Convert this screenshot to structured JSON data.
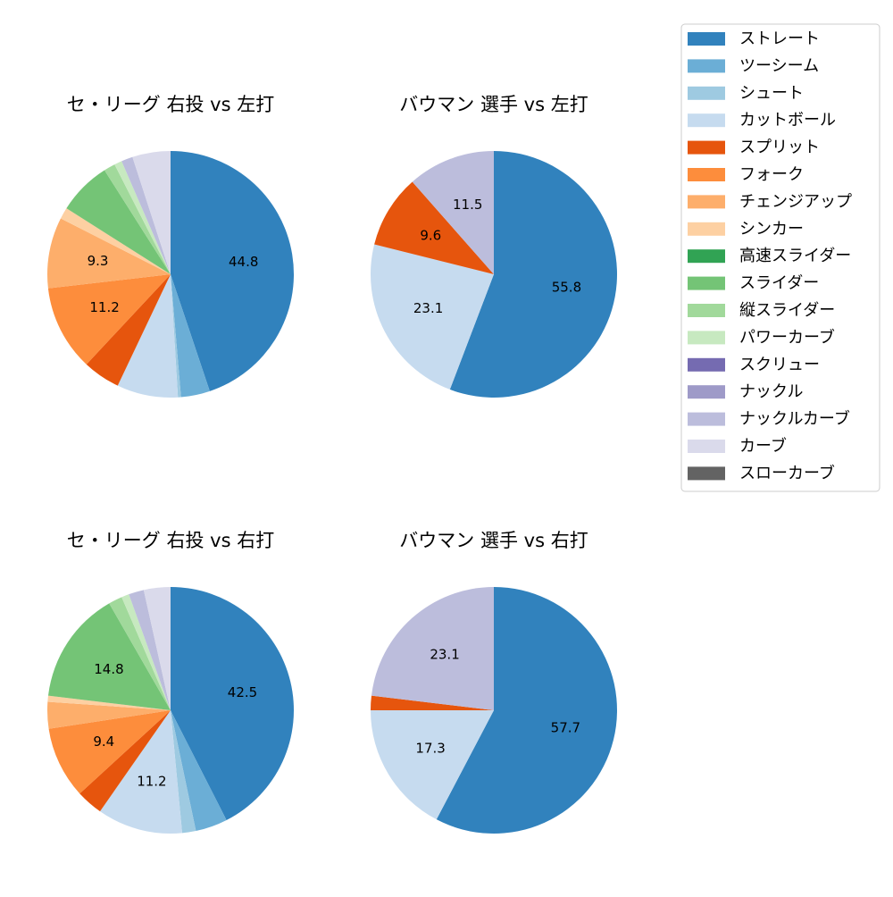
{
  "chart_data": [
    {
      "type": "pie",
      "title": "セ・リーグ 右投 vs 左打",
      "categories": [
        "ストレート",
        "ツーシーム",
        "シュート",
        "カットボール",
        "スプリット",
        "フォーク",
        "チェンジアップ",
        "シンカー",
        "高速スライダー",
        "スライダー",
        "縦スライダー",
        "パワーカーブ",
        "スクリュー",
        "ナックル",
        "ナックルカーブ",
        "カーブ",
        "スローカーブ"
      ],
      "colors": [
        "#3182bd",
        "#6baed6",
        "#9ecae1",
        "#c6dbef",
        "#e6550d",
        "#fd8d3c",
        "#fdae6b",
        "#fdd0a2",
        "#31a354",
        "#74c476",
        "#a1d99b",
        "#c7e9c0",
        "#756bb1",
        "#9e9ac8",
        "#bcbddc",
        "#dadaeb",
        "#636363"
      ],
      "values": [
        44.8,
        3.8,
        0.4,
        8.0,
        4.9,
        11.2,
        9.3,
        1.5,
        0,
        7.0,
        1.5,
        1.0,
        0,
        0,
        1.5,
        5.0,
        0
      ],
      "value_labels": [
        "44.8",
        null,
        null,
        null,
        null,
        "11.2",
        "9.3",
        null,
        null,
        null,
        null,
        null,
        null,
        null,
        null,
        null,
        null
      ],
      "legend": "upper right"
    },
    {
      "type": "pie",
      "title": "バウマン 選手 vs 左打",
      "categories": [
        "ストレート",
        "ツーシーム",
        "シュート",
        "カットボール",
        "スプリット",
        "フォーク",
        "チェンジアップ",
        "シンカー",
        "高速スライダー",
        "スライダー",
        "縦スライダー",
        "パワーカーブ",
        "スクリュー",
        "ナックル",
        "ナックルカーブ",
        "カーブ",
        "スローカーブ"
      ],
      "colors": [
        "#3182bd",
        "#6baed6",
        "#9ecae1",
        "#c6dbef",
        "#e6550d",
        "#fd8d3c",
        "#fdae6b",
        "#fdd0a2",
        "#31a354",
        "#74c476",
        "#a1d99b",
        "#c7e9c0",
        "#756bb1",
        "#9e9ac8",
        "#bcbddc",
        "#dadaeb",
        "#636363"
      ],
      "values": [
        55.8,
        0,
        0,
        23.1,
        9.6,
        0,
        0,
        0,
        0,
        0,
        0,
        0,
        0,
        0,
        11.5,
        0,
        0
      ],
      "value_labels": [
        "55.8",
        null,
        null,
        "23.1",
        "9.6",
        null,
        null,
        null,
        null,
        null,
        null,
        null,
        null,
        null,
        "11.5",
        null,
        null
      ]
    },
    {
      "type": "pie",
      "title": "セ・リーグ 右投 vs 右打",
      "categories": [
        "ストレート",
        "ツーシーム",
        "シュート",
        "カットボール",
        "スプリット",
        "フォーク",
        "チェンジアップ",
        "シンカー",
        "高速スライダー",
        "スライダー",
        "縦スライダー",
        "パワーカーブ",
        "スクリュー",
        "ナックル",
        "ナックルカーブ",
        "カーブ",
        "スローカーブ"
      ],
      "colors": [
        "#3182bd",
        "#6baed6",
        "#9ecae1",
        "#c6dbef",
        "#e6550d",
        "#fd8d3c",
        "#fdae6b",
        "#fdd0a2",
        "#31a354",
        "#74c476",
        "#a1d99b",
        "#c7e9c0",
        "#756bb1",
        "#9e9ac8",
        "#bcbddc",
        "#dadaeb",
        "#636363"
      ],
      "values": [
        42.5,
        4.2,
        1.8,
        11.2,
        3.5,
        9.4,
        3.5,
        0.8,
        0,
        14.8,
        1.8,
        1.0,
        0,
        0,
        2.0,
        3.5,
        0
      ],
      "value_labels": [
        "42.5",
        null,
        null,
        "11.2",
        null,
        "9.4",
        null,
        null,
        null,
        "14.8",
        null,
        null,
        null,
        null,
        null,
        null,
        null
      ]
    },
    {
      "type": "pie",
      "title": "バウマン 選手 vs 右打",
      "categories": [
        "ストレート",
        "ツーシーム",
        "シュート",
        "カットボール",
        "スプリット",
        "フォーク",
        "チェンジアップ",
        "シンカー",
        "高速スライダー",
        "スライダー",
        "縦スライダー",
        "パワーカーブ",
        "スクリュー",
        "ナックル",
        "ナックルカーブ",
        "カーブ",
        "スローカーブ"
      ],
      "colors": [
        "#3182bd",
        "#6baed6",
        "#9ecae1",
        "#c6dbef",
        "#e6550d",
        "#fd8d3c",
        "#fdae6b",
        "#fdd0a2",
        "#31a354",
        "#74c476",
        "#a1d99b",
        "#c7e9c0",
        "#756bb1",
        "#9e9ac8",
        "#bcbddc",
        "#dadaeb",
        "#636363"
      ],
      "values": [
        57.7,
        0,
        0,
        17.3,
        1.9,
        0,
        0,
        0,
        0,
        0,
        0,
        0,
        0,
        0,
        23.1,
        0,
        0
      ],
      "value_labels": [
        "57.7",
        null,
        null,
        "17.3",
        null,
        null,
        null,
        null,
        null,
        null,
        null,
        null,
        null,
        null,
        "23.1",
        null,
        null
      ]
    }
  ]
}
